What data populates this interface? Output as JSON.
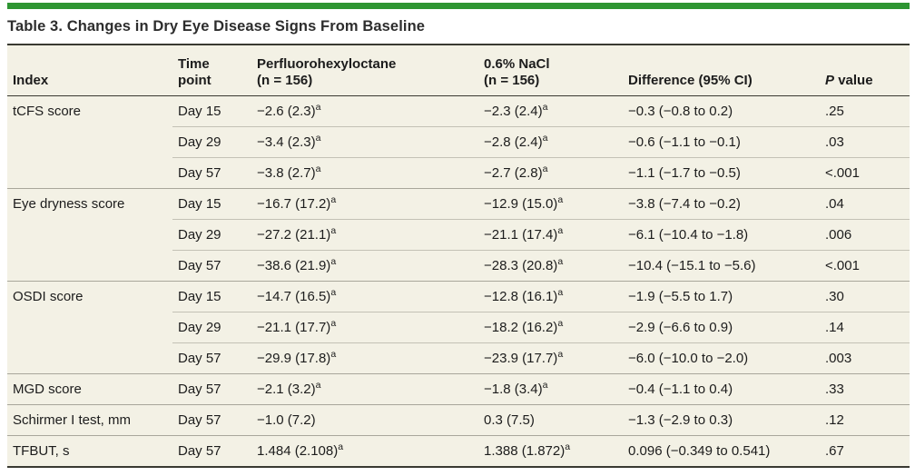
{
  "title": "Table 3. Changes in Dry Eye Disease Signs From Baseline",
  "colors": {
    "accent_green": "#2e9532",
    "table_background": "#f3f1e5",
    "heavy_rule": "#3a3a32",
    "row_divider": "#c3c1b5",
    "section_divider": "#a8a69b",
    "text": "#1c1c1c"
  },
  "table": {
    "header": {
      "index": "Index",
      "time_line1": "Time",
      "time_line2": "point",
      "pfho_line1": "Perfluorohexyloctane",
      "pfho_line2": "(n = 156)",
      "nacl_line1": "0.6% NaCl",
      "nacl_line2": "(n = 156)",
      "diff": "Difference (95% CI)",
      "p_italic": "P",
      "p_rest": "value"
    },
    "rows": [
      {
        "index": "tCFS score",
        "time": "Day 15",
        "pfho": "−2.6 (2.3)",
        "pfho_sup": "a",
        "nacl": "−2.3 (2.4)",
        "nacl_sup": "a",
        "diff": "−0.3 (−0.8 to 0.2)",
        "p": ".25",
        "section_start": false
      },
      {
        "index": "",
        "time": "Day 29",
        "pfho": "−3.4 (2.3)",
        "pfho_sup": "a",
        "nacl": "−2.8 (2.4)",
        "nacl_sup": "a",
        "diff": "−0.6 (−1.1 to −0.1)",
        "p": ".03",
        "section_start": false
      },
      {
        "index": "",
        "time": "Day 57",
        "pfho": "−3.8 (2.7)",
        "pfho_sup": "a",
        "nacl": "−2.7 (2.8)",
        "nacl_sup": "a",
        "diff": "−1.1 (−1.7 to −0.5)",
        "p": "<.001",
        "section_start": false
      },
      {
        "index": "Eye dryness score",
        "time": "Day 15",
        "pfho": "−16.7 (17.2)",
        "pfho_sup": "a",
        "nacl": "−12.9 (15.0)",
        "nacl_sup": "a",
        "diff": "−3.8 (−7.4 to −0.2)",
        "p": ".04",
        "section_start": true
      },
      {
        "index": "",
        "time": "Day 29",
        "pfho": "−27.2 (21.1)",
        "pfho_sup": "a",
        "nacl": "−21.1 (17.4)",
        "nacl_sup": "a",
        "diff": "−6.1 (−10.4 to −1.8)",
        "p": ".006",
        "section_start": false
      },
      {
        "index": "",
        "time": "Day 57",
        "pfho": "−38.6 (21.9)",
        "pfho_sup": "a",
        "nacl": "−28.3 (20.8)",
        "nacl_sup": "a",
        "diff": "−10.4 (−15.1 to −5.6)",
        "p": "<.001",
        "section_start": false
      },
      {
        "index": "OSDI score",
        "time": "Day 15",
        "pfho": "−14.7 (16.5)",
        "pfho_sup": "a",
        "nacl": "−12.8 (16.1)",
        "nacl_sup": "a",
        "diff": "−1.9 (−5.5 to 1.7)",
        "p": ".30",
        "section_start": true
      },
      {
        "index": "",
        "time": "Day 29",
        "pfho": "−21.1 (17.7)",
        "pfho_sup": "a",
        "nacl": "−18.2 (16.2)",
        "nacl_sup": "a",
        "diff": "−2.9 (−6.6 to 0.9)",
        "p": ".14",
        "section_start": false
      },
      {
        "index": "",
        "time": "Day 57",
        "pfho": "−29.9 (17.8)",
        "pfho_sup": "a",
        "nacl": "−23.9 (17.7)",
        "nacl_sup": "a",
        "diff": "−6.0 (−10.0 to −2.0)",
        "p": ".003",
        "section_start": false
      },
      {
        "index": "MGD score",
        "time": "Day 57",
        "pfho": "−2.1 (3.2)",
        "pfho_sup": "a",
        "nacl": "−1.8 (3.4)",
        "nacl_sup": "a",
        "diff": "−0.4 (−1.1 to 0.4)",
        "p": ".33",
        "section_start": true
      },
      {
        "index": "Schirmer I test, mm",
        "time": "Day 57",
        "pfho": "−1.0 (7.2)",
        "pfho_sup": "",
        "nacl": "0.3 (7.5)",
        "nacl_sup": "",
        "diff": "−1.3 (−2.9 to 0.3)",
        "p": ".12",
        "section_start": true
      },
      {
        "index": "TFBUT, s",
        "time": "Day 57",
        "pfho": "1.484 (2.108)",
        "pfho_sup": "a",
        "nacl": "1.388 (1.872)",
        "nacl_sup": "a",
        "diff": "0.096 (−0.349 to 0.541)",
        "p": ".67",
        "section_start": true
      }
    ]
  }
}
